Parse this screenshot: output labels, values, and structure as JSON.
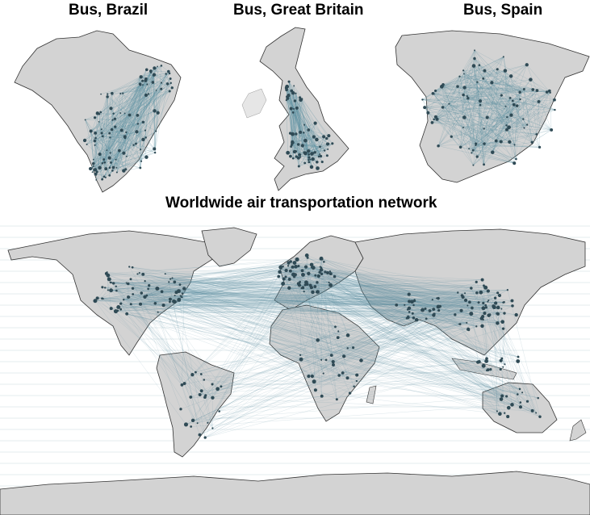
{
  "maps": {
    "brazil": {
      "title": "Bus, Brazil"
    },
    "great_britain": {
      "title": "Bus, Great Britain"
    },
    "spain": {
      "title": "Bus, Spain"
    },
    "world": {
      "title": "Worldwide air transportation network"
    }
  },
  "colors": {
    "land": "#d3d3d3",
    "border": "#333333",
    "edge": "#5a8ea0",
    "node": "#2f4a55",
    "background": "#ffffff"
  }
}
